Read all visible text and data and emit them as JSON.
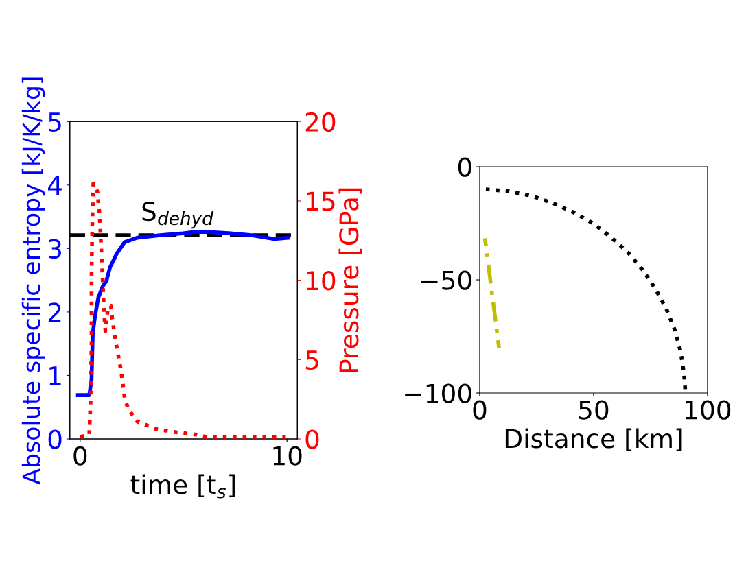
{
  "chart_data": [
    {
      "type": "line",
      "xlabel": "time [t$_{s}$]",
      "ylabel": "Absolute specific entropy [kJ/K/kg]",
      "y2label": "Pressure [GPa]",
      "xlim": [
        -0.5,
        10.5
      ],
      "xticks": [
        0,
        10
      ],
      "ylim": [
        0,
        5
      ],
      "yticks": [
        0,
        1,
        2,
        3,
        4,
        5
      ],
      "y2lim": [
        0,
        20
      ],
      "y2ticks": [
        0,
        5,
        10,
        15,
        20
      ],
      "ref_lines": [
        {
          "axis": "y",
          "value": 3.21,
          "label": "S$_{dehyd}$",
          "color": "#000000",
          "line_style": "dashed"
        }
      ],
      "series": [
        {
          "color": "#0000ff",
          "line_style": "solid",
          "x": [
            -0.11,
            0.44,
            0.55,
            0.61,
            0.72,
            0.88,
            1.1,
            1.27,
            1.44,
            1.77,
            2.15,
            2.76,
            3.87,
            4.97,
            5.52,
            6.19,
            7.18,
            8.29,
            9.39,
            10.06
          ],
          "values": [
            0.69,
            0.69,
            0.93,
            1.66,
            1.94,
            2.23,
            2.41,
            2.49,
            2.7,
            2.92,
            3.1,
            3.17,
            3.21,
            3.24,
            3.26,
            3.26,
            3.24,
            3.21,
            3.15,
            3.17
          ]
        },
        {
          "color": "#ff0000",
          "line_style": "dotted",
          "axis": "y2",
          "x": [
            0,
            0.44,
            0.5,
            0.55,
            0.55,
            0.59,
            0.64,
            0.83,
            0.94,
            1.05,
            1.16,
            1.22,
            1.33,
            1.49,
            1.55,
            1.71,
            1.99,
            2.15,
            2.32,
            2.76,
            3.65,
            4.64,
            5.64,
            6.08,
            7.18,
            8.84,
            9.94
          ],
          "values": [
            0.13,
            0.27,
            2.3,
            5.9,
            10.2,
            13.8,
            16.1,
            15.6,
            14.1,
            11.2,
            7.9,
            6.8,
            8.1,
            8.4,
            7.6,
            6.2,
            4.2,
            2.6,
            1.9,
            1.1,
            0.63,
            0.42,
            0.27,
            0.13,
            0.13,
            0.13,
            0.13
          ]
        }
      ]
    },
    {
      "type": "line",
      "xlabel": "Distance [km]",
      "xlim": [
        0,
        100
      ],
      "xticks": [
        0,
        50,
        100
      ],
      "ylim": [
        -100,
        0
      ],
      "yticks": [
        0,
        {
          "value": -50,
          "label": "−50"
        },
        {
          "value": -100,
          "label": "−100"
        }
      ],
      "series": [
        {
          "color": "#000000",
          "line_style": "dotted",
          "x": [
            2.7,
            12.9,
            22.4,
            31.9,
            41,
            49.7,
            57.5,
            65,
            71.6,
            77.1,
            81.9,
            85.6,
            88.2,
            89.7,
            90.2
          ],
          "values": [
            -10,
            -10.9,
            -12.8,
            -16,
            -20.1,
            -25,
            -31.1,
            -37.8,
            -45.7,
            -53.9,
            -62.8,
            -72,
            -81.7,
            -91.5,
            -98.3
          ]
        },
        {
          "color": "#bfbf00",
          "line_style": "dashdot",
          "x": [
            2.3,
            8.5
          ],
          "values": [
            -31.6,
            -80.1
          ]
        }
      ]
    }
  ]
}
